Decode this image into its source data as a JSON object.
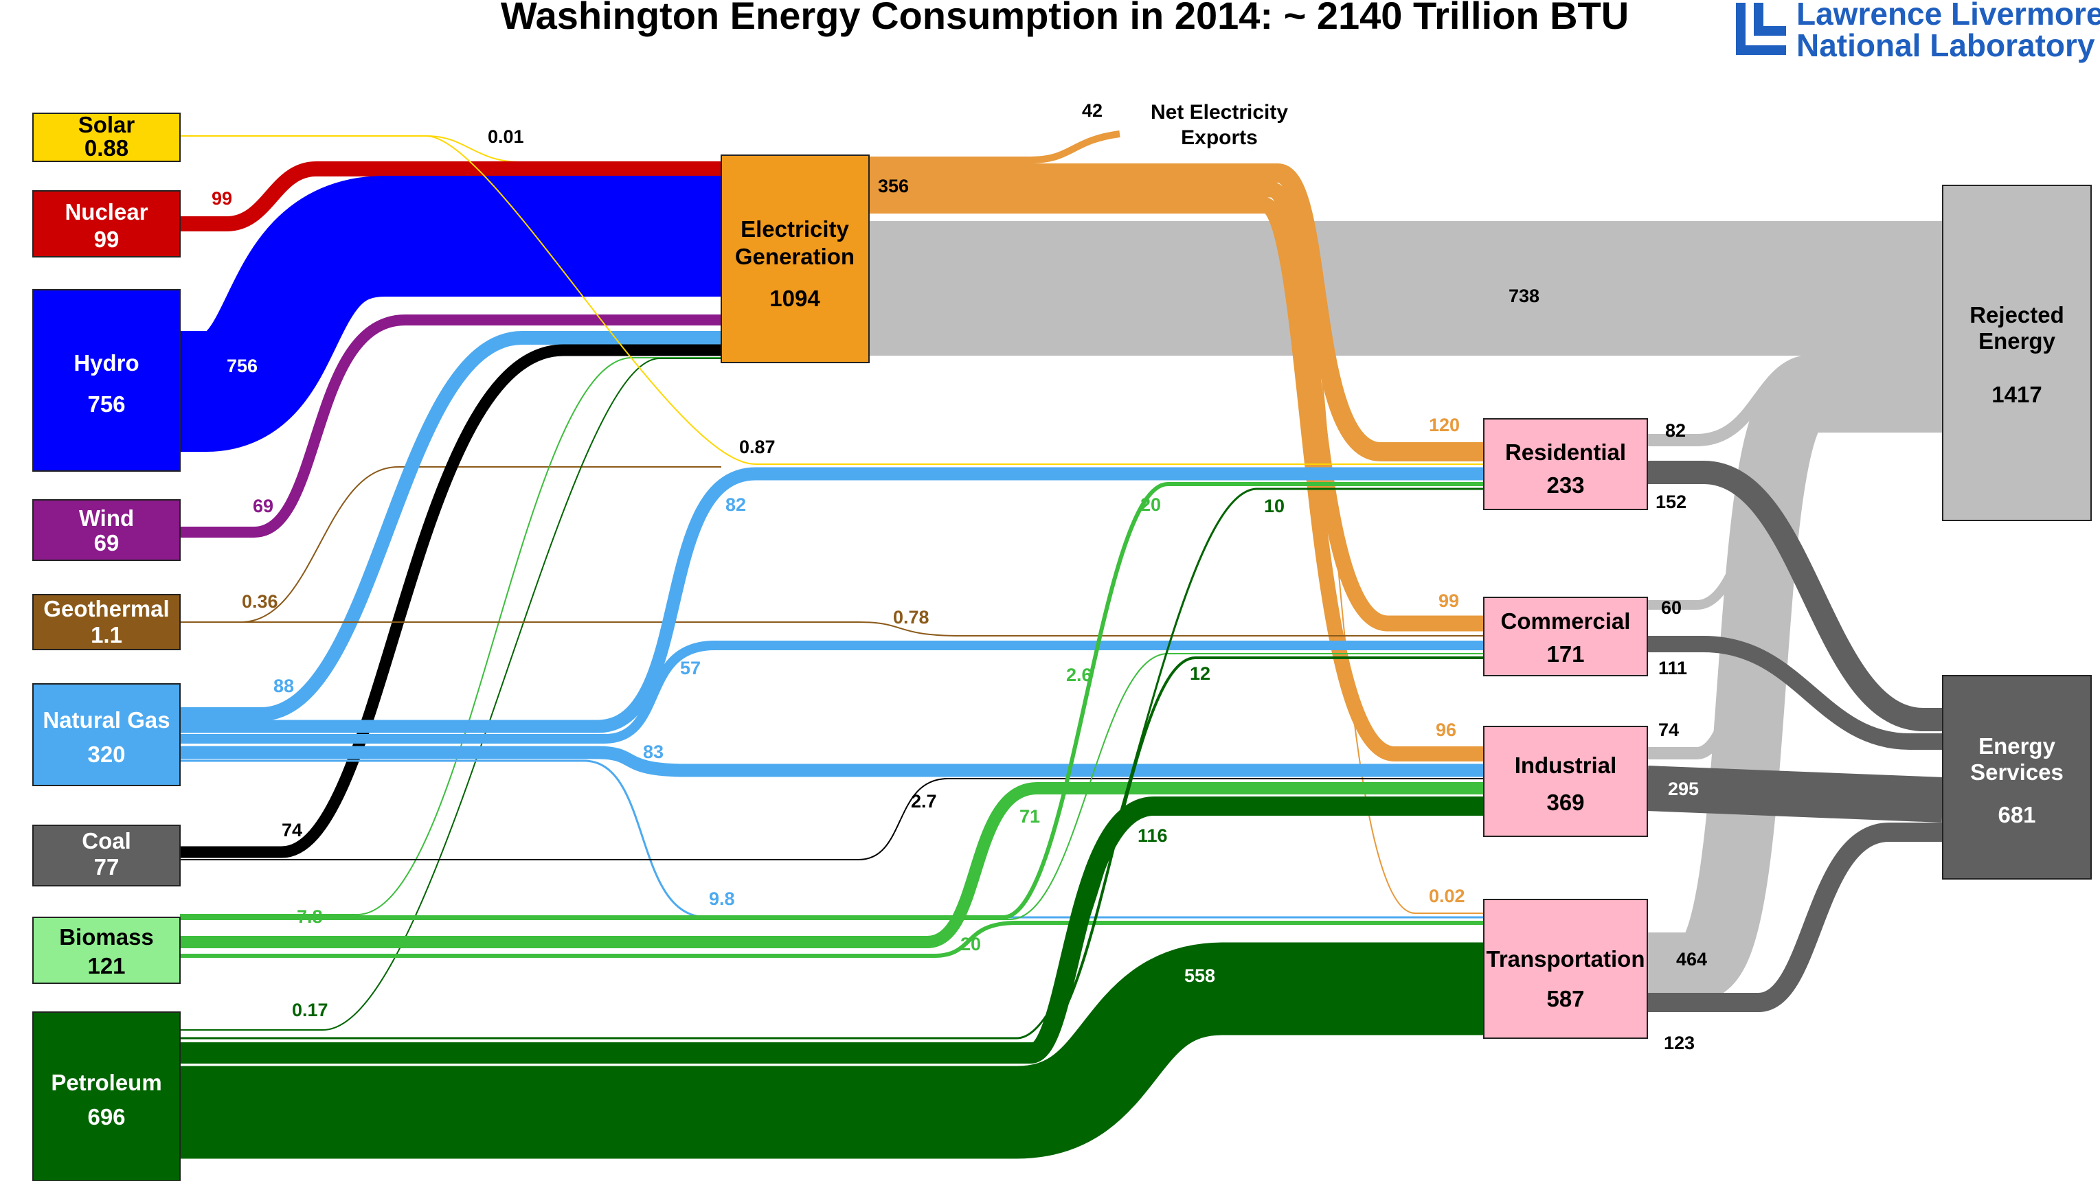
{
  "title": "Washington Energy Consumption in 2014: ~ 2140 Trillion BTU",
  "logo": {
    "line1": "Lawrence Livermore",
    "line2": "National Laboratory",
    "color": "#1f5fbf"
  },
  "units": "Trillion BTU",
  "colors": {
    "solar": "#FFD700",
    "nuclear": "#CC0000",
    "hydro": "#0000FF",
    "wind": "#8B1A8B",
    "geothermal": "#8B5A1A",
    "natural_gas": "#4DAAF0",
    "coal": "#000000",
    "biomass": "#3DBE3D",
    "biomass_node": "#90EE90",
    "petroleum": "#006400",
    "electricity": "#E89A3C",
    "electricity_node": "#F09A1E",
    "sector_node": "#FFB6C8",
    "rejected": "#BEBEBE",
    "services": "#606060"
  },
  "nodes": {
    "solar": {
      "name": "Solar",
      "value": "0.88"
    },
    "nuclear": {
      "name": "Nuclear",
      "value": "99"
    },
    "hydro": {
      "name": "Hydro",
      "value": "756"
    },
    "wind": {
      "name": "Wind",
      "value": "69"
    },
    "geothermal": {
      "name": "Geothermal",
      "value": "1.1"
    },
    "natural_gas": {
      "name": "Natural Gas",
      "value": "320"
    },
    "coal": {
      "name": "Coal",
      "value": "77"
    },
    "biomass": {
      "name": "Biomass",
      "value": "121"
    },
    "petroleum": {
      "name": "Petroleum",
      "value": "696"
    },
    "electricity": {
      "name_line1": "Electricity",
      "name_line2": "Generation",
      "value": "1094"
    },
    "residential": {
      "name": "Residential",
      "value": "233"
    },
    "commercial": {
      "name": "Commercial",
      "value": "171"
    },
    "industrial": {
      "name": "Industrial",
      "value": "369"
    },
    "transportation": {
      "name": "Transportation",
      "value": "587"
    },
    "rejected": {
      "name_line1": "Rejected",
      "name_line2": "Energy",
      "value": "1417"
    },
    "services": {
      "name_line1": "Energy",
      "name_line2": "Services",
      "value": "681"
    },
    "exports": {
      "name_line1": "Net Electricity",
      "name_line2": "Exports",
      "value": "42"
    }
  },
  "flows": {
    "solar_elec": "0.01",
    "nuclear_elec": "99",
    "hydro_elec": "756",
    "wind_elec": "69",
    "geo_elec": "0.36",
    "gas_elec": "88",
    "coal_elec": "74",
    "bio_elec": "7.8",
    "pet_elec": "0.17",
    "elec_exports": "42",
    "elec_out": "356",
    "elec_rejected": "738",
    "elec_res": "120",
    "elec_com": "99",
    "elec_ind": "96",
    "elec_trans": "0.02",
    "solar_res": "0.87",
    "gas_res": "82",
    "bio_res": "20",
    "pet_res": "10",
    "geo_com": "0.78",
    "gas_com": "57",
    "bio_com": "2.6",
    "pet_com": "12",
    "gas_ind": "83",
    "coal_ind": "2.7",
    "bio_ind": "71",
    "pet_ind": "116",
    "gas_trans": "9.8",
    "bio_trans": "20",
    "pet_trans": "558",
    "res_rej": "82",
    "res_serv": "152",
    "com_rej": "60",
    "com_serv": "111",
    "ind_rej": "74",
    "ind_serv": "295",
    "trans_rej": "464",
    "trans_serv": "123"
  }
}
